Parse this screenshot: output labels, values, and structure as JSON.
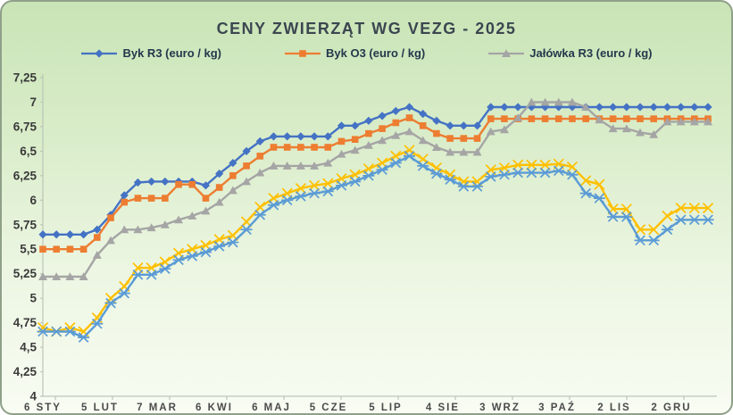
{
  "chart_data": {
    "type": "line",
    "title": "CENY ZWIERZĄT WG VEZG - 2025",
    "xlabel": "",
    "ylabel": "",
    "ylim": [
      4,
      7.25
    ],
    "y_tick_step": 0.25,
    "y_tick_labels": [
      "7,25",
      "7",
      "6,75",
      "6,5",
      "6,25",
      "6",
      "5,75",
      "5,5",
      "5,25",
      "5",
      "4,75",
      "4,5",
      "4,25",
      "4"
    ],
    "x_tick_labels": [
      "6 STY",
      "5 LUT",
      "7 MAR",
      "6 KWI",
      "6 MAJ",
      "5 CZE",
      "5 LIP",
      "4 SIE",
      "3 WRZ",
      "3 PAŹ",
      "2 LIS",
      "2 GRU"
    ],
    "grid": false,
    "legend_position": "top",
    "points_per_series": 50,
    "series": [
      {
        "id": "byk-r3",
        "label": "Byk R3 (euro / kg)",
        "color": "#4472C4",
        "marker": "diamond",
        "in_legend": true,
        "values": [
          5.65,
          5.65,
          5.65,
          5.65,
          5.7,
          5.85,
          6.05,
          6.18,
          6.19,
          6.19,
          6.19,
          6.19,
          6.15,
          6.27,
          6.38,
          6.5,
          6.6,
          6.65,
          6.65,
          6.65,
          6.65,
          6.65,
          6.76,
          6.76,
          6.81,
          6.86,
          6.91,
          6.95,
          6.88,
          6.81,
          6.76,
          6.76,
          6.76,
          6.95,
          6.95,
          6.95,
          6.95,
          6.95,
          6.95,
          6.95,
          6.95,
          6.95,
          6.95,
          6.95,
          6.95,
          6.95,
          6.95,
          6.95,
          6.95,
          6.95
        ]
      },
      {
        "id": "byk-o3",
        "label": "Byk O3 (euro / kg)",
        "color": "#ED7D31",
        "marker": "square",
        "in_legend": true,
        "values": [
          5.5,
          5.5,
          5.5,
          5.5,
          5.62,
          5.82,
          5.98,
          6.02,
          6.02,
          6.02,
          6.16,
          6.16,
          6.02,
          6.13,
          6.25,
          6.35,
          6.45,
          6.54,
          6.54,
          6.54,
          6.54,
          6.54,
          6.6,
          6.62,
          6.68,
          6.73,
          6.79,
          6.84,
          6.76,
          6.68,
          6.63,
          6.63,
          6.63,
          6.83,
          6.83,
          6.83,
          6.83,
          6.83,
          6.83,
          6.83,
          6.83,
          6.83,
          6.83,
          6.83,
          6.83,
          6.83,
          6.83,
          6.83,
          6.83,
          6.83
        ]
      },
      {
        "id": "jalowka-r3",
        "label": "Jałówka R3 (euro / kg)",
        "color": "#A5A5A5",
        "marker": "triangle",
        "in_legend": true,
        "values": [
          5.22,
          5.22,
          5.22,
          5.22,
          5.44,
          5.59,
          5.7,
          5.7,
          5.72,
          5.75,
          5.8,
          5.84,
          5.89,
          5.98,
          6.1,
          6.19,
          6.28,
          6.35,
          6.35,
          6.35,
          6.35,
          6.38,
          6.47,
          6.51,
          6.56,
          6.61,
          6.66,
          6.7,
          6.61,
          6.54,
          6.49,
          6.49,
          6.49,
          6.7,
          6.72,
          6.84,
          7.0,
          7.0,
          7.0,
          7.0,
          6.95,
          6.82,
          6.73,
          6.73,
          6.69,
          6.67,
          6.8,
          6.8,
          6.8,
          6.8
        ]
      },
      {
        "id": "unlabeled-yellow",
        "label": "",
        "color": "#FFC000",
        "marker": "x",
        "in_legend": false,
        "values": [
          4.7,
          4.66,
          4.7,
          4.66,
          4.8,
          5.0,
          5.12,
          5.31,
          5.31,
          5.37,
          5.46,
          5.5,
          5.54,
          5.6,
          5.64,
          5.78,
          5.93,
          6.02,
          6.07,
          6.12,
          6.15,
          6.17,
          6.22,
          6.26,
          6.32,
          6.38,
          6.45,
          6.51,
          6.42,
          6.33,
          6.26,
          6.19,
          6.19,
          6.31,
          6.33,
          6.36,
          6.36,
          6.36,
          6.37,
          6.34,
          6.2,
          6.16,
          5.91,
          5.91,
          5.7,
          5.7,
          5.84,
          5.92,
          5.92,
          5.92
        ]
      },
      {
        "id": "unlabeled-light-blue",
        "label": "",
        "color": "#5B9BD5",
        "marker": "star",
        "in_legend": false,
        "values": [
          4.66,
          4.66,
          4.66,
          4.6,
          4.74,
          4.95,
          5.05,
          5.24,
          5.24,
          5.3,
          5.39,
          5.43,
          5.47,
          5.53,
          5.57,
          5.7,
          5.85,
          5.95,
          6.0,
          6.04,
          6.07,
          6.09,
          6.15,
          6.19,
          6.25,
          6.31,
          6.38,
          6.45,
          6.35,
          6.27,
          6.21,
          6.14,
          6.14,
          6.24,
          6.26,
          6.28,
          6.28,
          6.28,
          6.3,
          6.26,
          6.07,
          6.02,
          5.83,
          5.83,
          5.59,
          5.59,
          5.7,
          5.8,
          5.8,
          5.8
        ]
      }
    ],
    "colors": {
      "background_top": "#c9e4b6",
      "background_bottom": "#f8fcf3",
      "border": "#8fa089",
      "title_text": "#3c4650",
      "legend_text": "#24384c",
      "axis_line": "#bcc5b6",
      "y_tick_text": "#3a3a3a",
      "x_tick_text": "#4b4b4b"
    }
  }
}
